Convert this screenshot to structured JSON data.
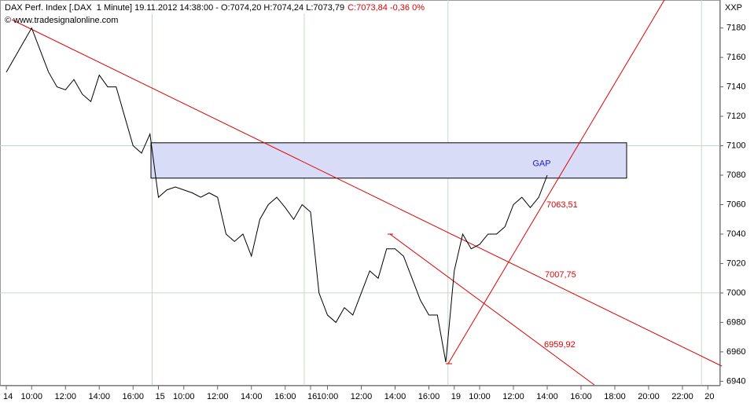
{
  "chart_data": {
    "type": "line",
    "title": "DAX Perf. Index [.DAX  1 Minute] 19.11.2012 14:38:00 - O:7074,20 H:7074,24 L:7073,79",
    "title_close": "C:7073,84 -0,36 0%",
    "subtitle": "© www.tradesignalonline.com",
    "axis_label": "XXP",
    "categories": [
      "14",
      null,
      null,
      "10:00",
      null,
      null,
      null,
      "12:00",
      null,
      null,
      null,
      "14:00",
      null,
      null,
      null,
      "16:00",
      null,
      null,
      "15",
      null,
      null,
      "10:00",
      null,
      null,
      null,
      "12:00",
      null,
      null,
      null,
      "14:00",
      null,
      null,
      null,
      "16:00",
      null,
      null,
      "16",
      null,
      "10:00",
      null,
      null,
      null,
      "12:00",
      null,
      null,
      null,
      "14:00",
      null,
      null,
      null,
      "16:00",
      null,
      null,
      "19",
      null,
      null,
      "10:00",
      null,
      null,
      null,
      "12:00",
      null,
      null,
      null,
      "14:00",
      null,
      null,
      null,
      "16:00",
      null,
      null,
      null,
      "18:00",
      null,
      null,
      null,
      "20:00",
      null,
      null,
      null,
      "22:00",
      null,
      null,
      "20",
      null
    ],
    "series": [
      {
        "name": ".DAX",
        "color": "#000000",
        "values": [
          7150,
          7160,
          7170,
          7180,
          7165,
          7150,
          7140,
          7138,
          7145,
          7135,
          7130,
          7148,
          7140,
          7140,
          7120,
          7100,
          7095,
          7108,
          7065,
          7070,
          7072,
          7070,
          7068,
          7065,
          7068,
          7065,
          7040,
          7035,
          7040,
          7025,
          7050,
          7060,
          7065,
          7058,
          7050,
          7060,
          7055,
          7000,
          6985,
          6980,
          6990,
          6985,
          7000,
          7015,
          7010,
          7030,
          7030,
          7025,
          7010,
          6995,
          6985,
          6985,
          6953,
          7015,
          7040,
          7030,
          7033,
          7040,
          7040,
          7045,
          7060,
          7065,
          7058,
          7065,
          7080,
          null,
          null,
          null,
          null,
          null,
          null,
          null,
          null,
          null,
          null,
          null,
          null,
          null,
          null,
          null,
          null,
          null,
          null,
          null,
          null
        ]
      }
    ],
    "ylim": [
      6937,
      7199
    ],
    "yticks": [
      6940,
      6960,
      6980,
      7000,
      7020,
      7040,
      7060,
      7080,
      7100,
      7120,
      7140,
      7160,
      7180
    ],
    "ygrid": [
      7000,
      7100
    ],
    "gap": {
      "label": "GAP",
      "top": 7102,
      "bottom": 7078,
      "color": "#d9dcf6"
    },
    "trend_color": "#e00000",
    "annotations": [
      "7063,51",
      "7007,75",
      "6959,92"
    ]
  }
}
